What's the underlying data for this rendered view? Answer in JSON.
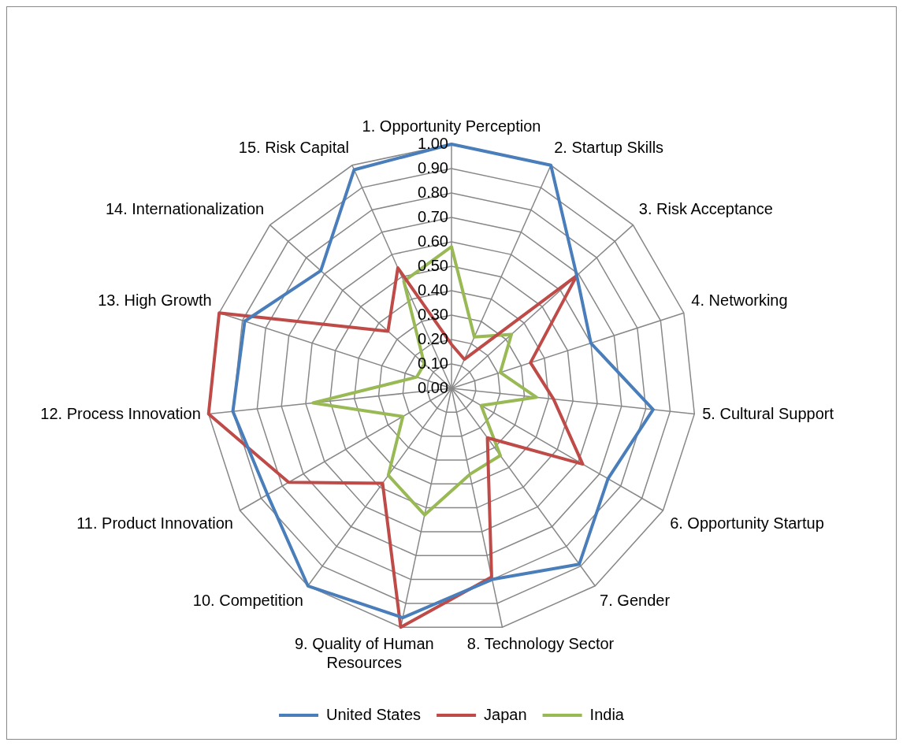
{
  "chart_data": {
    "type": "radar",
    "categories": [
      "1. Opportunity Perception",
      "2. Startup Skills",
      "3. Risk Acceptance",
      "4. Networking",
      "5. Cultural Support",
      "6. Opportunity Startup",
      "7. Gender",
      "8. Technology Sector",
      "9. Quality of Human Resources",
      "10. Competition",
      "11. Product Innovation",
      "12. Process Innovation",
      "13. High Growth",
      "14. Internationalization",
      "15. Risk Capital"
    ],
    "series": [
      {
        "name": "United States",
        "color": "#4a7ebb",
        "values": [
          1.0,
          1.0,
          0.69,
          0.6,
          0.83,
          0.74,
          0.89,
          0.8,
          0.96,
          1.0,
          0.87,
          0.9,
          0.89,
          0.72,
          0.98
        ]
      },
      {
        "name": "Japan",
        "color": "#be4b48",
        "values": [
          0.18,
          0.13,
          0.69,
          0.34,
          0.42,
          0.62,
          0.25,
          0.79,
          1.0,
          0.48,
          0.77,
          1.0,
          1.0,
          0.35,
          0.54
        ]
      },
      {
        "name": "India",
        "color": "#98b954",
        "values": [
          0.58,
          0.23,
          0.33,
          0.21,
          0.35,
          0.14,
          0.34,
          0.36,
          0.53,
          0.44,
          0.23,
          0.57,
          0.15,
          0.15,
          0.48
        ]
      }
    ],
    "ylim": [
      0,
      1
    ],
    "yticks": [
      {
        "value": 0,
        "label": "0.00"
      },
      {
        "value": 0.1,
        "label": "0.10"
      },
      {
        "value": 0.2,
        "label": "0.20"
      },
      {
        "value": 0.3,
        "label": "0.30"
      },
      {
        "value": 0.4,
        "label": "0.40"
      },
      {
        "value": 0.5,
        "label": "0.50"
      },
      {
        "value": 0.6,
        "label": "0.60"
      },
      {
        "value": 0.7,
        "label": "0.70"
      },
      {
        "value": 0.8,
        "label": "0.80"
      },
      {
        "value": 0.9,
        "label": "0.90"
      },
      {
        "value": 1,
        "label": "1.00"
      }
    ],
    "grid": true,
    "legend": "bottom",
    "marker": "none",
    "line_style": "solid"
  }
}
